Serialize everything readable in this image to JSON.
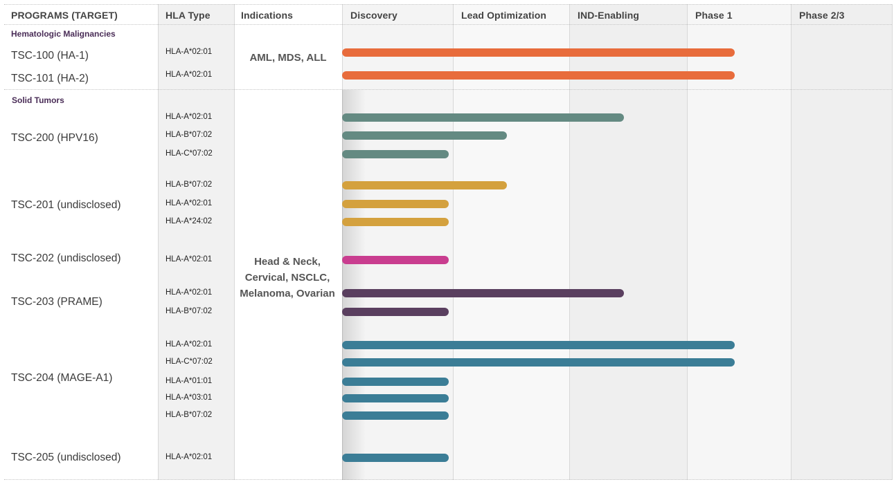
{
  "header": {
    "programs": "PROGRAMS (TARGET)",
    "hla": "HLA Type",
    "indications": "Indications"
  },
  "sections": [
    {
      "title": "Hematologic Malignancies",
      "indication": "AML, MDS, ALL"
    },
    {
      "title": "Solid Tumors",
      "indication": "Head & Neck, Cervical, NSCLC, Melanoma, Ovarian"
    }
  ],
  "chart_data": {
    "type": "bar",
    "orientation": "horizontal",
    "stages": [
      "Discovery",
      "Lead Optimization",
      "IND-Enabling",
      "Phase 1",
      "Phase 2/3"
    ],
    "programs": [
      {
        "name": "TSC-100 (HA-1)",
        "section": 0,
        "color": "#e86c3c",
        "entries": [
          {
            "hla": "HLA-A*02:01",
            "progress": 3.5
          }
        ]
      },
      {
        "name": "TSC-101 (HA-2)",
        "section": 0,
        "color": "#e86c3c",
        "entries": [
          {
            "hla": "HLA-A*02:01",
            "progress": 3.5
          }
        ]
      },
      {
        "name": "TSC-200 (HPV16)",
        "section": 1,
        "color": "#648a82",
        "entries": [
          {
            "hla": "HLA-A*02:01",
            "progress": 2.5
          },
          {
            "hla": "HLA-B*07:02",
            "progress": 1.5
          },
          {
            "hla": "HLA-C*07:02",
            "progress": 1.0
          }
        ]
      },
      {
        "name": "TSC-201 (undisclosed)",
        "section": 1,
        "color": "#d4a13e",
        "entries": [
          {
            "hla": "HLA-B*07:02",
            "progress": 1.5
          },
          {
            "hla": "HLA-A*02:01",
            "progress": 1.0
          },
          {
            "hla": "HLA-A*24:02",
            "progress": 1.0
          }
        ]
      },
      {
        "name": "TSC-202 (undisclosed)",
        "section": 1,
        "color": "#c93d8f",
        "entries": [
          {
            "hla": "HLA-A*02:01",
            "progress": 1.0
          }
        ]
      },
      {
        "name": "TSC-203 (PRAME)",
        "section": 1,
        "color": "#5a3f5f",
        "entries": [
          {
            "hla": "HLA-A*02:01",
            "progress": 2.5
          },
          {
            "hla": "HLA-B*07:02",
            "progress": 1.0
          }
        ]
      },
      {
        "name": "TSC-204 (MAGE-A1)",
        "section": 1,
        "color": "#3b7d96",
        "entries": [
          {
            "hla": "HLA-A*02:01",
            "progress": 3.5
          },
          {
            "hla": "HLA-C*07:02",
            "progress": 3.5
          },
          {
            "hla": "HLA-A*01:01",
            "progress": 1.0
          },
          {
            "hla": "HLA-A*03:01",
            "progress": 1.0
          },
          {
            "hla": "HLA-B*07:02",
            "progress": 1.0
          }
        ]
      },
      {
        "name": "TSC-205 (undisclosed)",
        "section": 1,
        "color": "#3b7d96",
        "entries": [
          {
            "hla": "HLA-A*02:01",
            "progress": 1.0
          }
        ]
      }
    ]
  }
}
